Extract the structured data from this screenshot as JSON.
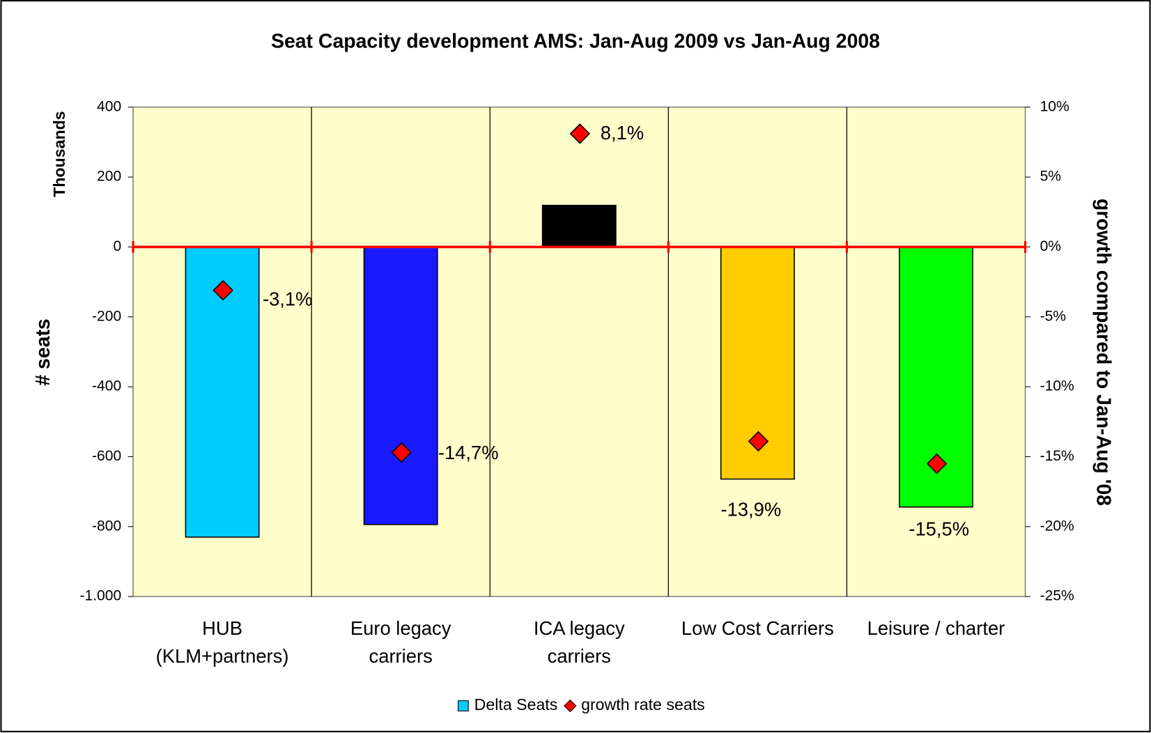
{
  "chart_data": {
    "type": "bar",
    "title": "Seat Capacity development AMS: Jan-Aug 2009 vs Jan-Aug 2008",
    "y_unit_label": "Thousands",
    "y_label": "# seats",
    "y2_label": "growth compared to Jan-Aug '08",
    "categories": [
      [
        "HUB",
        "(KLM+partners)"
      ],
      [
        "Euro legacy",
        "carriers"
      ],
      [
        "ICA legacy",
        "carriers"
      ],
      [
        "Low Cost Carriers"
      ],
      [
        "Leisure / charter"
      ]
    ],
    "series": [
      {
        "name": "Delta Seats",
        "type": "bar",
        "color": "#00ccff",
        "colors": [
          "#00ccff",
          "#1a1aff",
          "#000000",
          "#ffcc00",
          "#00ff00"
        ],
        "values": [
          -830,
          -794,
          119,
          -664,
          -744
        ]
      },
      {
        "name": "growth rate seats",
        "type": "scatter",
        "axis": "y2",
        "color": "#ff0000",
        "values": [
          -3.1,
          -14.7,
          8.1,
          -13.9,
          -15.5
        ],
        "value_labels": [
          "-3,1%",
          "-14,7%",
          "8,1%",
          "-13,9%",
          "-15,5%"
        ]
      }
    ],
    "ylim": [
      -1000,
      400
    ],
    "yticks": [
      {
        "value": -1000,
        "label": "-1.000"
      },
      -800,
      -600,
      -400,
      -200,
      0,
      200,
      400
    ],
    "y2lim": [
      -25,
      10
    ],
    "y2ticks": [
      {
        "value": -25,
        "label": "-25%"
      },
      {
        "value": -20,
        "label": "-20%"
      },
      {
        "value": -15,
        "label": "-15%"
      },
      {
        "value": -10,
        "label": "-10%"
      },
      {
        "value": -5,
        "label": "-5%"
      },
      {
        "value": 0,
        "label": "0%"
      },
      {
        "value": 5,
        "label": "5%"
      },
      {
        "value": 10,
        "label": "10%"
      }
    ],
    "plot_background": "#ffffcc",
    "zero_line_color": "#ff0000"
  }
}
